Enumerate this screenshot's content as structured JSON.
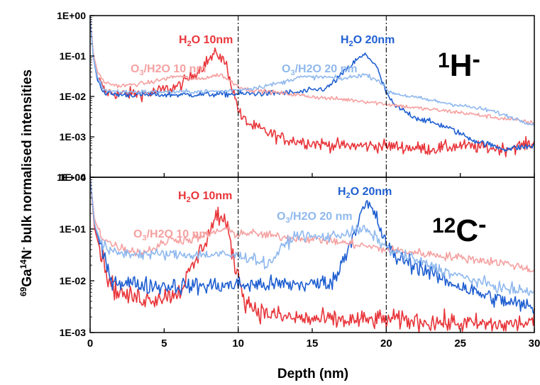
{
  "figure": {
    "ylabel": {
      "iso1": "69",
      "el1": "Ga",
      "iso2": "14",
      "el2": "N",
      "sup": "-",
      "rest": " bulk normalised intensities"
    },
    "xlabel": "Depth (nm)"
  },
  "colors": {
    "H2O_10nm": "#e8353a",
    "H2O_20nm": "#1f5fd1",
    "O3H2O_10nm": "#f5a0a0",
    "O3H2O_20nm": "#8fb8ee",
    "axes": "#000000"
  },
  "chart_data": [
    {
      "type": "line",
      "panel": "top",
      "ion_label": {
        "num": "1",
        "el": "H",
        "charge": "-"
      },
      "y_scale": "log",
      "ylim": [
        0.0001,
        1
      ],
      "yticks": [
        "1E-04",
        "1E-03",
        "1E-02",
        "1E-01",
        "1E+00"
      ],
      "xlim": [
        0,
        30
      ],
      "vlines": [
        10,
        20
      ],
      "annotations": [
        {
          "id": "h2o10",
          "pre": "H",
          "sub": "2",
          "post": "O 10nm",
          "color": "#e8353a"
        },
        {
          "id": "h2o20",
          "pre": "H",
          "sub": "2",
          "post": "O 20nm",
          "color": "#1f5fd1"
        },
        {
          "id": "o3h2o10",
          "pre": "O",
          "sub": "3",
          "post": "/H2O 10 nm",
          "color": "#f5a0a0"
        },
        {
          "id": "o3h2o20",
          "pre": "O",
          "sub": "3",
          "post": "/H2O 20 nm",
          "color": "#8fb8ee"
        }
      ],
      "series": [
        {
          "name": "H2O 10nm",
          "color": "#e8353a",
          "noise": 0.15,
          "points": [
            [
              0,
              1.0
            ],
            [
              0.2,
              0.12
            ],
            [
              0.5,
              0.03
            ],
            [
              1,
              0.013
            ],
            [
              2,
              0.0115
            ],
            [
              4,
              0.012
            ],
            [
              6,
              0.018
            ],
            [
              7,
              0.035
            ],
            [
              8,
              0.08
            ],
            [
              8.6,
              0.12
            ],
            [
              9.2,
              0.06
            ],
            [
              9.7,
              0.012
            ],
            [
              10.2,
              0.003
            ],
            [
              11,
              0.0018
            ],
            [
              13,
              0.0009
            ],
            [
              15,
              0.0007
            ],
            [
              17,
              0.0006
            ],
            [
              20,
              0.0006
            ],
            [
              23,
              0.0005
            ],
            [
              25,
              0.0006
            ],
            [
              28,
              0.0005
            ],
            [
              30,
              0.0007
            ]
          ]
        },
        {
          "name": "H2O 20nm",
          "color": "#1f5fd1",
          "noise": 0.07,
          "points": [
            [
              0,
              1.0
            ],
            [
              0.2,
              0.1
            ],
            [
              0.5,
              0.025
            ],
            [
              1,
              0.012
            ],
            [
              2,
              0.011
            ],
            [
              6,
              0.011
            ],
            [
              10,
              0.0115
            ],
            [
              14,
              0.0125
            ],
            [
              16,
              0.016
            ],
            [
              17,
              0.035
            ],
            [
              18,
              0.08
            ],
            [
              18.6,
              0.11
            ],
            [
              19.3,
              0.06
            ],
            [
              19.9,
              0.015
            ],
            [
              20.5,
              0.006
            ],
            [
              22,
              0.003
            ],
            [
              24,
              0.0018
            ],
            [
              25,
              0.0012
            ],
            [
              26,
              0.0008
            ],
            [
              28,
              0.0005
            ],
            [
              30,
              0.0006
            ]
          ]
        },
        {
          "name": "O3/H2O 10 nm",
          "color": "#f5a0a0",
          "noise": 0.05,
          "points": [
            [
              0,
              1.0
            ],
            [
              0.2,
              0.12
            ],
            [
              0.5,
              0.04
            ],
            [
              1,
              0.022
            ],
            [
              2,
              0.018
            ],
            [
              4,
              0.022
            ],
            [
              5.5,
              0.03
            ],
            [
              6,
              0.032
            ],
            [
              7,
              0.026
            ],
            [
              8,
              0.03
            ],
            [
              8.8,
              0.035
            ],
            [
              9.8,
              0.02
            ],
            [
              10.5,
              0.015
            ],
            [
              13,
              0.012
            ],
            [
              16,
              0.009
            ],
            [
              18,
              0.008
            ],
            [
              20,
              0.0065
            ],
            [
              22,
              0.0052
            ],
            [
              25,
              0.004
            ],
            [
              28,
              0.0028
            ],
            [
              30,
              0.0022
            ]
          ]
        },
        {
          "name": "O3/H2O 20 nm",
          "color": "#8fb8ee",
          "noise": 0.05,
          "points": [
            [
              0,
              1.0
            ],
            [
              0.2,
              0.1
            ],
            [
              0.5,
              0.03
            ],
            [
              1,
              0.014
            ],
            [
              2,
              0.013
            ],
            [
              6,
              0.013
            ],
            [
              9,
              0.0135
            ],
            [
              11,
              0.016
            ],
            [
              13,
              0.022
            ],
            [
              14,
              0.03
            ],
            [
              16,
              0.03
            ],
            [
              17,
              0.027
            ],
            [
              18.5,
              0.035
            ],
            [
              19.5,
              0.025
            ],
            [
              20.2,
              0.013
            ],
            [
              21,
              0.011
            ],
            [
              23,
              0.008
            ],
            [
              25,
              0.006
            ],
            [
              27,
              0.0045
            ],
            [
              30,
              0.002
            ]
          ]
        }
      ]
    },
    {
      "type": "line",
      "panel": "bottom",
      "ion_label": {
        "num": "12",
        "el": "C",
        "charge": "-"
      },
      "y_scale": "log",
      "ylim": [
        0.001,
        1
      ],
      "yticks": [
        "1E-03",
        "1E-02",
        "1E-01",
        "1E+00"
      ],
      "xlim": [
        0,
        30
      ],
      "xticks": [
        "0",
        "5",
        "10",
        "15",
        "20",
        "25",
        "30"
      ],
      "vlines": [
        10,
        20
      ],
      "annotations": [
        {
          "id": "h2o10",
          "pre": "H",
          "sub": "2",
          "post": "O 10nm",
          "color": "#e8353a"
        },
        {
          "id": "h2o20",
          "pre": "H",
          "sub": "2",
          "post": "O 20nm",
          "color": "#1f5fd1"
        },
        {
          "id": "o3h2o10",
          "pre": "O",
          "sub": "3",
          "post": "/H2O 10 nm",
          "color": "#f5a0a0"
        },
        {
          "id": "o3h2o20",
          "pre": "O",
          "sub": "3",
          "post": "/H2O 20 nm",
          "color": "#8fb8ee"
        }
      ],
      "series": [
        {
          "name": "H2O 10nm",
          "color": "#e8353a",
          "noise": 0.18,
          "points": [
            [
              0,
              1.0
            ],
            [
              0.3,
              0.1
            ],
            [
              0.8,
              0.03
            ],
            [
              1.2,
              0.012
            ],
            [
              1.6,
              0.007
            ],
            [
              2.5,
              0.005
            ],
            [
              4,
              0.0045
            ],
            [
              5,
              0.005
            ],
            [
              6,
              0.006
            ],
            [
              7,
              0.02
            ],
            [
              8,
              0.08
            ],
            [
              8.6,
              0.2
            ],
            [
              9.2,
              0.12
            ],
            [
              9.8,
              0.02
            ],
            [
              10.5,
              0.004
            ],
            [
              11.5,
              0.0025
            ],
            [
              13,
              0.002
            ],
            [
              15,
              0.0018
            ],
            [
              18,
              0.0017
            ],
            [
              20,
              0.0018
            ],
            [
              23,
              0.0016
            ],
            [
              25,
              0.0015
            ],
            [
              28,
              0.0014
            ],
            [
              30,
              0.0016
            ]
          ]
        },
        {
          "name": "H2O 20nm",
          "color": "#1f5fd1",
          "noise": 0.16,
          "points": [
            [
              0,
              1.0
            ],
            [
              0.3,
              0.12
            ],
            [
              0.8,
              0.04
            ],
            [
              1.2,
              0.015
            ],
            [
              1.6,
              0.01
            ],
            [
              4,
              0.008
            ],
            [
              8,
              0.008
            ],
            [
              12,
              0.0085
            ],
            [
              15,
              0.0085
            ],
            [
              16.5,
              0.01
            ],
            [
              17.5,
              0.05
            ],
            [
              18.3,
              0.2
            ],
            [
              18.7,
              0.3
            ],
            [
              19.2,
              0.2
            ],
            [
              19.9,
              0.06
            ],
            [
              20.5,
              0.03
            ],
            [
              22,
              0.02
            ],
            [
              24,
              0.01
            ],
            [
              25,
              0.008
            ],
            [
              26,
              0.006
            ],
            [
              28,
              0.004
            ],
            [
              30,
              0.003
            ]
          ]
        },
        {
          "name": "O3/H2O 10 nm",
          "color": "#f5a0a0",
          "noise": 0.08,
          "points": [
            [
              0,
              1.0
            ],
            [
              0.3,
              0.15
            ],
            [
              0.8,
              0.07
            ],
            [
              1.5,
              0.05
            ],
            [
              2.5,
              0.04
            ],
            [
              3.5,
              0.035
            ],
            [
              4.5,
              0.045
            ],
            [
              5.5,
              0.065
            ],
            [
              6.5,
              0.06
            ],
            [
              7.5,
              0.07
            ],
            [
              8.5,
              0.09
            ],
            [
              9.2,
              0.1
            ],
            [
              9.8,
              0.08
            ],
            [
              10.5,
              0.085
            ],
            [
              13,
              0.07
            ],
            [
              16,
              0.06
            ],
            [
              18,
              0.05
            ],
            [
              20,
              0.04
            ],
            [
              22,
              0.035
            ],
            [
              25,
              0.028
            ],
            [
              28,
              0.022
            ],
            [
              30,
              0.016
            ]
          ]
        },
        {
          "name": "O3/H2O 20 nm",
          "color": "#8fb8ee",
          "noise": 0.1,
          "points": [
            [
              0,
              1.0
            ],
            [
              0.3,
              0.12
            ],
            [
              0.8,
              0.05
            ],
            [
              1.5,
              0.035
            ],
            [
              3,
              0.033
            ],
            [
              6,
              0.032
            ],
            [
              9,
              0.032
            ],
            [
              11,
              0.028
            ],
            [
              12,
              0.02
            ],
            [
              13,
              0.045
            ],
            [
              14,
              0.08
            ],
            [
              15,
              0.07
            ],
            [
              16,
              0.07
            ],
            [
              17,
              0.08
            ],
            [
              18.5,
              0.1
            ],
            [
              19.5,
              0.06
            ],
            [
              20.2,
              0.04
            ],
            [
              22,
              0.025
            ],
            [
              24,
              0.015
            ],
            [
              26,
              0.01
            ],
            [
              28,
              0.007
            ],
            [
              30,
              0.006
            ]
          ]
        }
      ]
    }
  ]
}
